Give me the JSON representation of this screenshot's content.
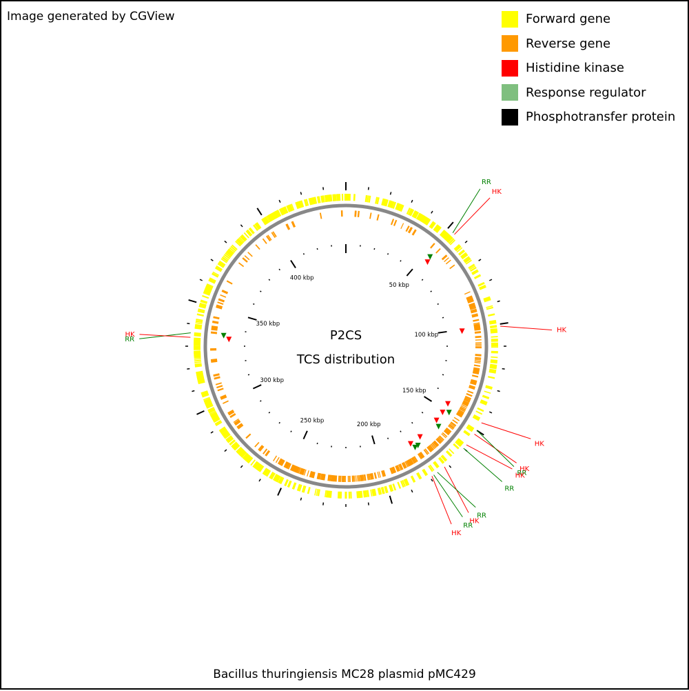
{
  "credit": "Image generated by CGView",
  "legend": [
    {
      "label": "Forward gene",
      "color": "#ffff00"
    },
    {
      "label": "Reverse gene",
      "color": "#ff9900"
    },
    {
      "label": "Histidine kinase",
      "color": "#ff0000"
    },
    {
      "label": "Response regulator",
      "color": "#7fbf7f"
    },
    {
      "label": "Phosphotransfer protein",
      "color": "#000000"
    }
  ],
  "map": {
    "title": "P2CS",
    "subtitle": "TCS distribution",
    "caption": "Bacillus thuringiensis MC28 plasmid pMC429",
    "backbone_color": "#888888",
    "tick_labels": [
      {
        "kbp": 50,
        "text": "50 kbp"
      },
      {
        "kbp": 100,
        "text": "100 kbp"
      },
      {
        "kbp": 150,
        "text": "150 kbp"
      },
      {
        "kbp": 200,
        "text": "200 kbp"
      },
      {
        "kbp": 250,
        "text": "250 kbp"
      },
      {
        "kbp": 300,
        "text": "300 kbp"
      },
      {
        "kbp": 350,
        "text": "350 kbp"
      },
      {
        "kbp": 400,
        "text": "400 kbp"
      }
    ],
    "features": [
      {
        "type": "RR",
        "label": "RR",
        "kbp": 53
      },
      {
        "type": "HK",
        "label": "HK",
        "kbp": 54
      },
      {
        "type": "HK",
        "label": "HK",
        "kbp": 101
      },
      {
        "type": "HK",
        "label": "HK",
        "kbp": 146
      },
      {
        "type": "HK",
        "label": "HK",
        "kbp": 152
      },
      {
        "type": "RR",
        "label": "RR",
        "kbp": 150
      },
      {
        "type": "HK",
        "label": "HK",
        "kbp": 158
      },
      {
        "type": "RR",
        "label": "RR",
        "kbp": 160
      },
      {
        "type": "HK",
        "label": "HK",
        "kbp": 172
      },
      {
        "type": "RR",
        "label": "RR",
        "kbp": 176
      },
      {
        "type": "RR",
        "label": "RR",
        "kbp": 178
      },
      {
        "type": "HK",
        "label": "HK",
        "kbp": 179
      },
      {
        "type": "RR",
        "label": "RR",
        "kbp": 336
      },
      {
        "type": "HK",
        "label": "HK",
        "kbp": 334
      }
    ]
  }
}
